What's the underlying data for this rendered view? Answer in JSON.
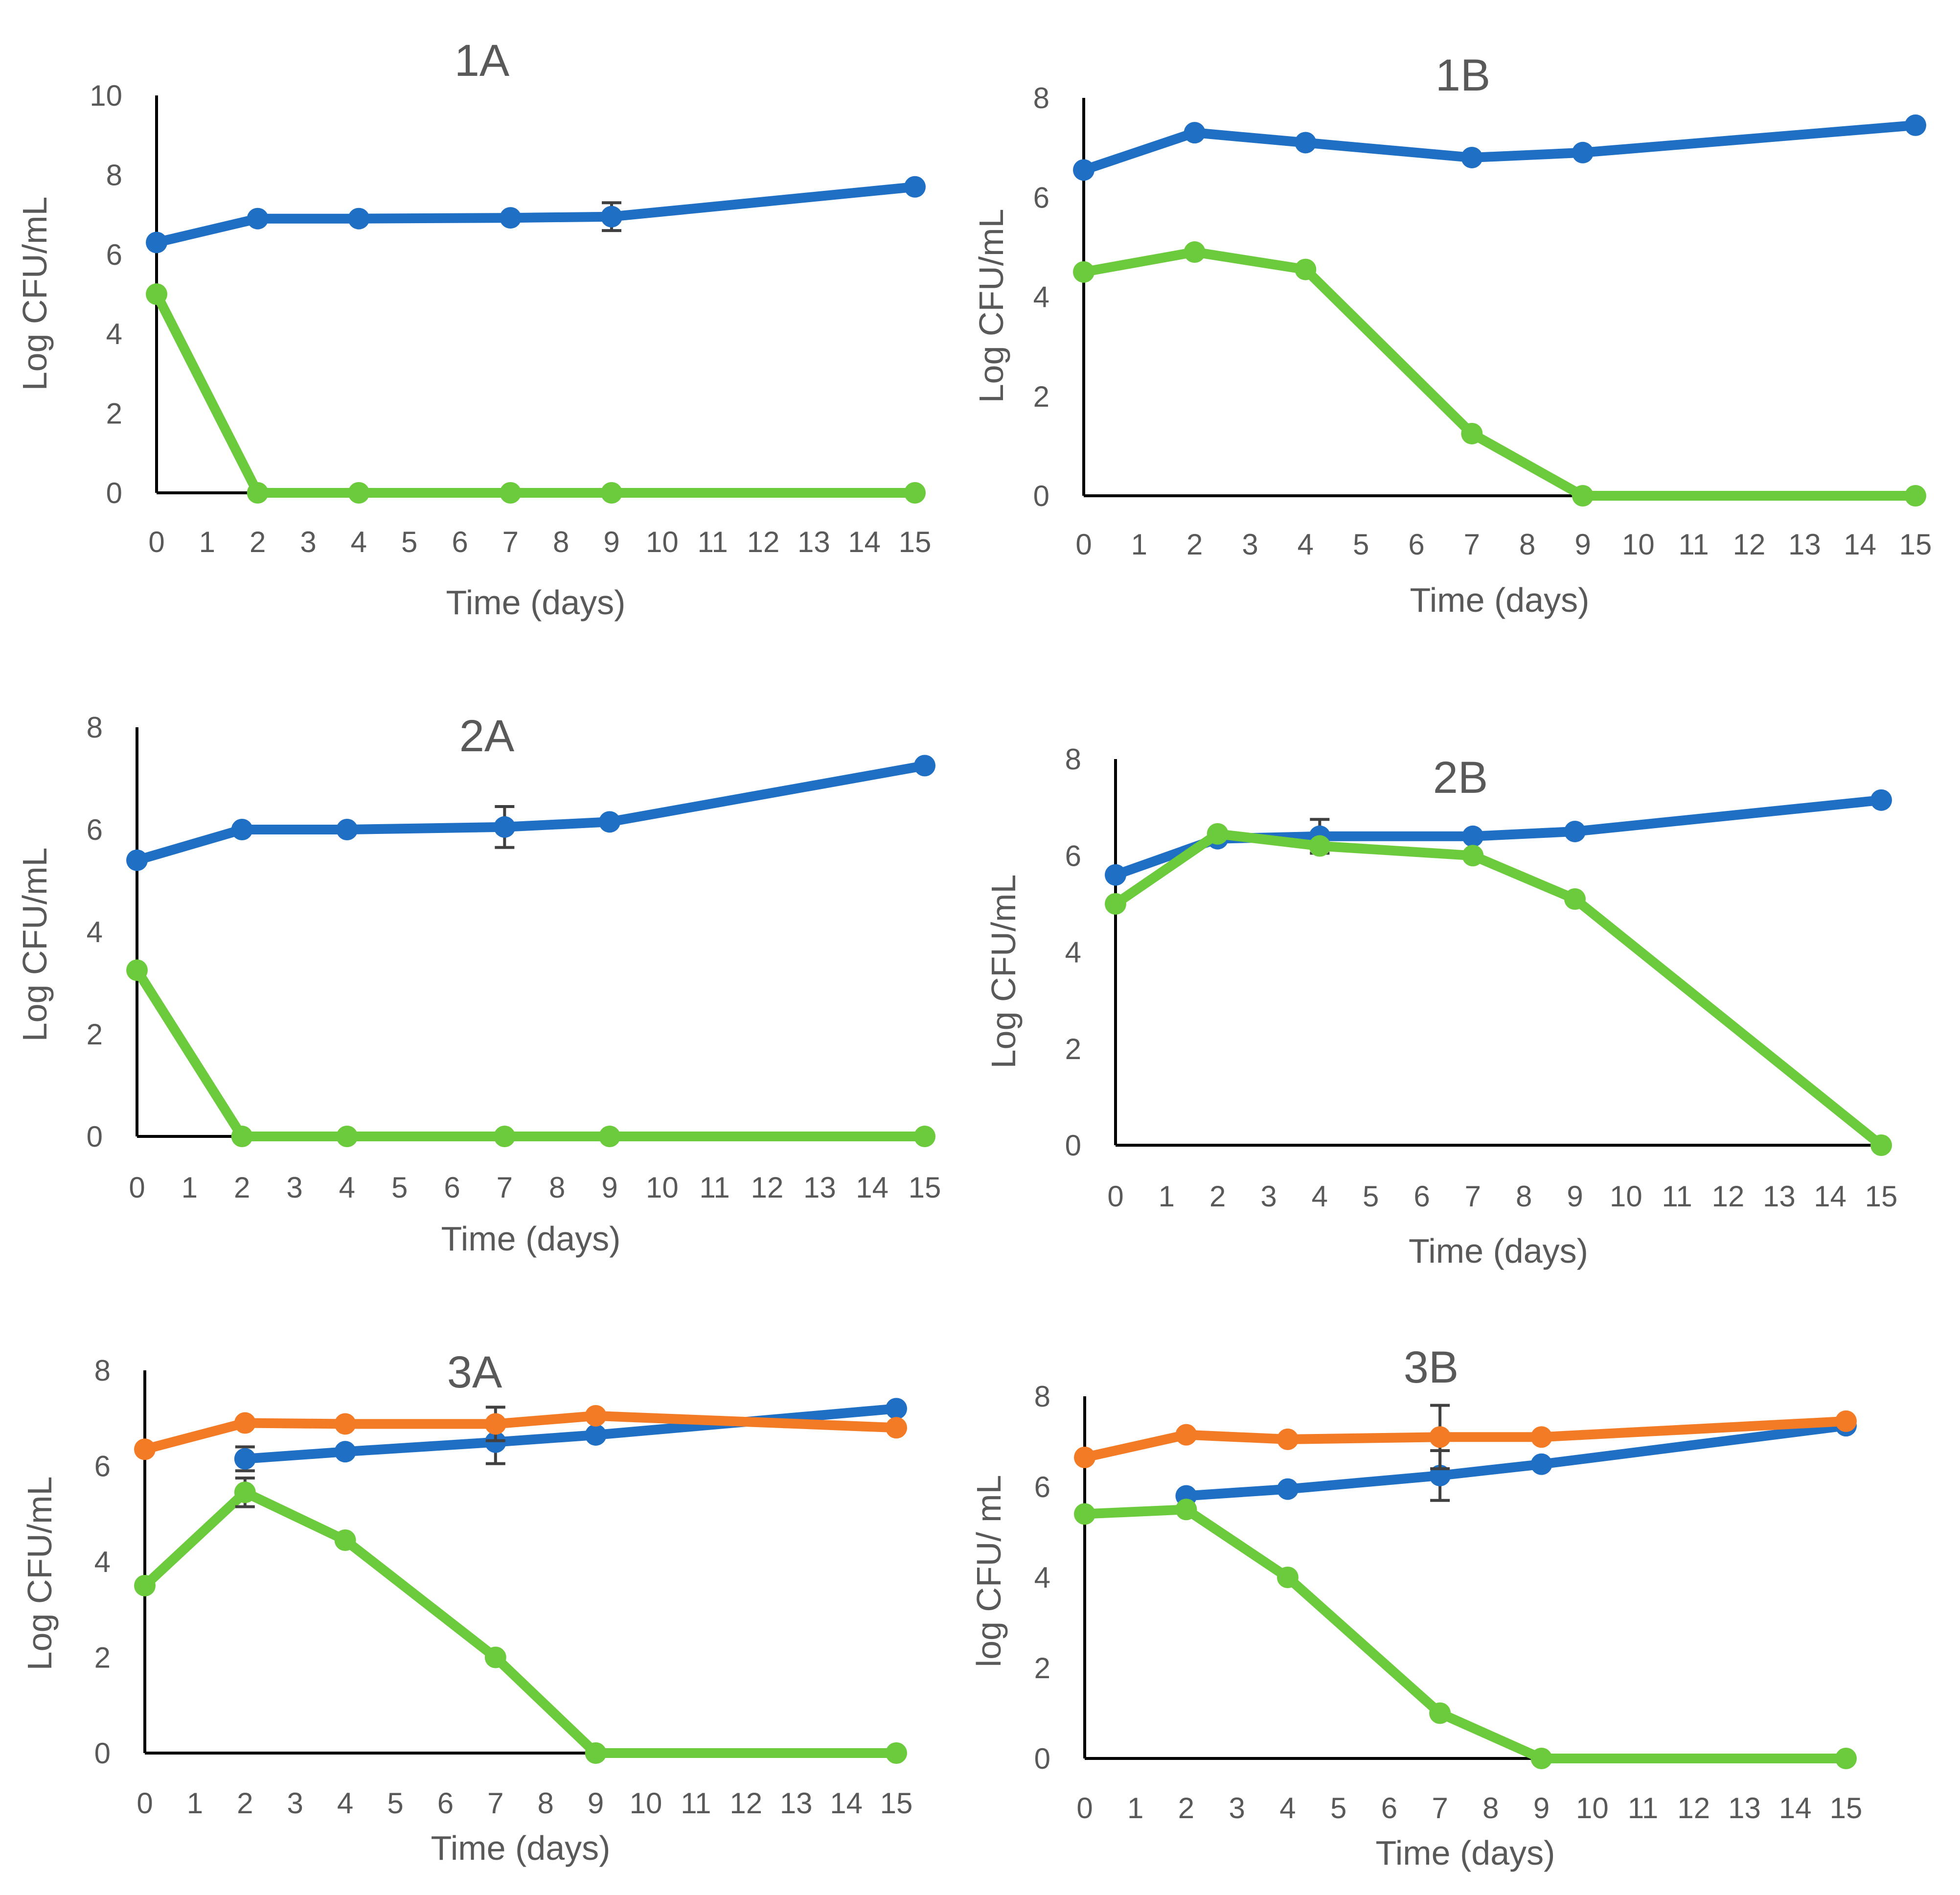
{
  "colors": {
    "blue": "#1F6FC5",
    "green": "#6CCB3C",
    "orange": "#F47B26",
    "text": "#595959",
    "axis": "#000000",
    "error": "#404040"
  },
  "chart_data": [
    {
      "type": "line",
      "title": "1A",
      "xlabel": "Time (days)",
      "ylabel": "Log CFU/mL",
      "x_ticks": [
        "0",
        "1",
        "2",
        "3",
        "4",
        "5",
        "6",
        "7",
        "8",
        "9",
        "10",
        "11",
        "12",
        "13",
        "14",
        "15"
      ],
      "ylim": [
        0,
        10
      ],
      "y_ticks": [
        0,
        2,
        4,
        6,
        8,
        10
      ],
      "grid": false,
      "legend": "none",
      "series": [
        {
          "color": "#1F6FC5",
          "points": [
            {
              "x": 0,
              "y": 6.3
            },
            {
              "x": 2,
              "y": 6.9
            },
            {
              "x": 4,
              "y": 6.9
            },
            {
              "x": 7,
              "y": 6.92
            },
            {
              "x": 9,
              "y": 6.95,
              "err": 0.35
            },
            {
              "x": 15,
              "y": 7.7
            }
          ]
        },
        {
          "color": "#6CCB3C",
          "points": [
            {
              "x": 0,
              "y": 5.0
            },
            {
              "x": 2,
              "y": 0
            },
            {
              "x": 4,
              "y": 0
            },
            {
              "x": 7,
              "y": 0
            },
            {
              "x": 9,
              "y": 0
            },
            {
              "x": 15,
              "y": 0
            }
          ]
        }
      ]
    },
    {
      "type": "line",
      "title": "1B",
      "xlabel": "Time (days)",
      "ylabel": "Log CFU/mL",
      "x_ticks": [
        "0",
        "1",
        "2",
        "3",
        "4",
        "5",
        "6",
        "7",
        "8",
        "9",
        "10",
        "11",
        "12",
        "13",
        "14",
        "15"
      ],
      "ylim": [
        0,
        8
      ],
      "y_ticks": [
        0,
        2,
        4,
        6,
        8
      ],
      "grid": false,
      "legend": "none",
      "series": [
        {
          "color": "#1F6FC5",
          "points": [
            {
              "x": 0,
              "y": 6.55
            },
            {
              "x": 2,
              "y": 7.3
            },
            {
              "x": 4,
              "y": 7.1
            },
            {
              "x": 7,
              "y": 6.8
            },
            {
              "x": 9,
              "y": 6.9
            },
            {
              "x": 15,
              "y": 7.45
            }
          ]
        },
        {
          "color": "#6CCB3C",
          "points": [
            {
              "x": 0,
              "y": 4.5
            },
            {
              "x": 2,
              "y": 4.9
            },
            {
              "x": 4,
              "y": 4.55
            },
            {
              "x": 7,
              "y": 1.25
            },
            {
              "x": 9,
              "y": 0
            },
            {
              "x": 15,
              "y": 0
            }
          ]
        }
      ]
    },
    {
      "type": "line",
      "title": "2A",
      "xlabel": "Time (days)",
      "ylabel": "Log CFU/mL",
      "x_ticks": [
        "0",
        "1",
        "2",
        "3",
        "4",
        "5",
        "6",
        "7",
        "8",
        "9",
        "10",
        "11",
        "12",
        "13",
        "14",
        "15"
      ],
      "ylim": [
        0,
        8
      ],
      "y_ticks": [
        0,
        2,
        4,
        6,
        8
      ],
      "grid": false,
      "legend": "none",
      "series": [
        {
          "color": "#1F6FC5",
          "points": [
            {
              "x": 0,
              "y": 5.4
            },
            {
              "x": 2,
              "y": 6.0
            },
            {
              "x": 4,
              "y": 6.0
            },
            {
              "x": 7,
              "y": 6.05,
              "err": 0.4
            },
            {
              "x": 9,
              "y": 6.15
            },
            {
              "x": 15,
              "y": 7.25
            }
          ]
        },
        {
          "color": "#6CCB3C",
          "points": [
            {
              "x": 0,
              "y": 3.25
            },
            {
              "x": 2,
              "y": 0
            },
            {
              "x": 4,
              "y": 0
            },
            {
              "x": 7,
              "y": 0
            },
            {
              "x": 9,
              "y": 0
            },
            {
              "x": 15,
              "y": 0
            }
          ]
        }
      ]
    },
    {
      "type": "line",
      "title": "2B",
      "xlabel": "Time (days)",
      "ylabel": "Log CFU/mL",
      "x_ticks": [
        "0",
        "1",
        "2",
        "3",
        "4",
        "5",
        "6",
        "7",
        "8",
        "9",
        "10",
        "11",
        "12",
        "13",
        "14",
        "15"
      ],
      "ylim": [
        0,
        8
      ],
      "y_ticks": [
        0,
        2,
        4,
        6,
        8
      ],
      "grid": false,
      "legend": "none",
      "series": [
        {
          "color": "#1F6FC5",
          "points": [
            {
              "x": 0,
              "y": 5.6
            },
            {
              "x": 2,
              "y": 6.35
            },
            {
              "x": 4,
              "y": 6.4,
              "err": 0.35
            },
            {
              "x": 7,
              "y": 6.4
            },
            {
              "x": 9,
              "y": 6.5
            },
            {
              "x": 15,
              "y": 7.15
            }
          ]
        },
        {
          "color": "#6CCB3C",
          "points": [
            {
              "x": 0,
              "y": 5.0
            },
            {
              "x": 2,
              "y": 6.45
            },
            {
              "x": 4,
              "y": 6.2
            },
            {
              "x": 7,
              "y": 6.0
            },
            {
              "x": 9,
              "y": 5.1
            },
            {
              "x": 15,
              "y": 0
            }
          ]
        }
      ]
    },
    {
      "type": "line",
      "title": "3A",
      "xlabel": "Time (days)",
      "ylabel": "Log CFU/mL",
      "x_ticks": [
        "0",
        "1",
        "2",
        "3",
        "4",
        "5",
        "6",
        "7",
        "8",
        "9",
        "10",
        "11",
        "12",
        "13",
        "14",
        "15"
      ],
      "ylim": [
        0,
        8
      ],
      "y_ticks": [
        0,
        2,
        4,
        6,
        8
      ],
      "grid": false,
      "legend": "none",
      "series": [
        {
          "color": "#1F6FC5",
          "points": [
            {
              "x": 2,
              "y": 6.15,
              "err": 0.25
            },
            {
              "x": 4,
              "y": 6.3
            },
            {
              "x": 7,
              "y": 6.5,
              "err": 0.45
            },
            {
              "x": 9,
              "y": 6.65
            },
            {
              "x": 15,
              "y": 7.2
            }
          ]
        },
        {
          "color": "#F47B26",
          "points": [
            {
              "x": 0,
              "y": 6.35
            },
            {
              "x": 2,
              "y": 6.9
            },
            {
              "x": 4,
              "y": 6.88
            },
            {
              "x": 7,
              "y": 6.88,
              "err": 0.35
            },
            {
              "x": 9,
              "y": 7.05
            },
            {
              "x": 15,
              "y": 6.8
            }
          ]
        },
        {
          "color": "#6CCB3C",
          "points": [
            {
              "x": 0,
              "y": 3.5
            },
            {
              "x": 2,
              "y": 5.45,
              "err": 0.3
            },
            {
              "x": 4,
              "y": 4.45
            },
            {
              "x": 7,
              "y": 2.0
            },
            {
              "x": 9,
              "y": 0
            },
            {
              "x": 15,
              "y": 0
            }
          ]
        }
      ]
    },
    {
      "type": "line",
      "title": "3B",
      "xlabel": "Time (days)",
      "ylabel": "log CFU/ mL",
      "x_ticks": [
        "0",
        "1",
        "2",
        "3",
        "4",
        "5",
        "6",
        "7",
        "8",
        "9",
        "10",
        "11",
        "12",
        "13",
        "14",
        "15"
      ],
      "ylim": [
        0,
        8
      ],
      "y_ticks": [
        0,
        2,
        4,
        6,
        8
      ],
      "grid": false,
      "legend": "none",
      "series": [
        {
          "color": "#1F6FC5",
          "points": [
            {
              "x": 2,
              "y": 5.8
            },
            {
              "x": 4,
              "y": 5.95
            },
            {
              "x": 7,
              "y": 6.25,
              "err": 0.55
            },
            {
              "x": 9,
              "y": 6.5
            },
            {
              "x": 15,
              "y": 7.35
            }
          ]
        },
        {
          "color": "#F47B26",
          "points": [
            {
              "x": 0,
              "y": 6.65
            },
            {
              "x": 2,
              "y": 7.15
            },
            {
              "x": 4,
              "y": 7.05
            },
            {
              "x": 7,
              "y": 7.1,
              "err": 0.7
            },
            {
              "x": 9,
              "y": 7.1
            },
            {
              "x": 15,
              "y": 7.45
            }
          ]
        },
        {
          "color": "#6CCB3C",
          "points": [
            {
              "x": 0,
              "y": 5.4
            },
            {
              "x": 2,
              "y": 5.5
            },
            {
              "x": 4,
              "y": 4.0
            },
            {
              "x": 7,
              "y": 1.0
            },
            {
              "x": 9,
              "y": 0
            },
            {
              "x": 15,
              "y": 0
            }
          ]
        }
      ]
    }
  ]
}
